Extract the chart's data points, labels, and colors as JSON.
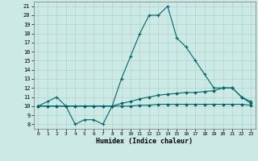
{
  "title": "",
  "xlabel": "Humidex (Indice chaleur)",
  "xlim": [
    -0.5,
    23.5
  ],
  "ylim": [
    7.5,
    21.5
  ],
  "xticks": [
    0,
    1,
    2,
    3,
    4,
    5,
    6,
    7,
    8,
    9,
    10,
    11,
    12,
    13,
    14,
    15,
    16,
    17,
    18,
    19,
    20,
    21,
    22,
    23
  ],
  "yticks": [
    8,
    9,
    10,
    11,
    12,
    13,
    14,
    15,
    16,
    17,
    18,
    19,
    20,
    21
  ],
  "background_color": "#cce9e5",
  "grid_color": "#aed4cf",
  "line_color": "#006666",
  "line1_x": [
    0,
    1,
    2,
    3,
    4,
    5,
    6,
    7,
    8,
    9,
    10,
    11,
    12,
    13,
    14,
    15,
    16,
    17,
    18,
    19,
    20,
    21,
    22,
    23
  ],
  "line1_y": [
    10,
    10.5,
    11,
    10,
    8,
    8.5,
    8.5,
    8,
    10,
    13,
    15.5,
    18,
    20,
    20,
    21,
    17.5,
    16.5,
    15,
    13.5,
    12,
    12,
    12,
    11,
    10.5
  ],
  "line2_x": [
    0,
    1,
    2,
    3,
    4,
    5,
    6,
    7,
    8,
    9,
    10,
    11,
    12,
    13,
    14,
    15,
    16,
    17,
    18,
    19,
    20,
    21,
    22,
    23
  ],
  "line2_y": [
    10,
    10,
    10,
    10,
    10,
    10,
    10,
    10,
    10,
    10.3,
    10.5,
    10.8,
    11,
    11.2,
    11.3,
    11.4,
    11.5,
    11.5,
    11.6,
    11.7,
    12,
    12,
    11,
    10.3
  ],
  "line3_x": [
    0,
    1,
    2,
    3,
    4,
    5,
    6,
    7,
    8,
    9,
    10,
    11,
    12,
    13,
    14,
    15,
    16,
    17,
    18,
    19,
    20,
    21,
    22,
    23
  ],
  "line3_y": [
    10,
    10,
    10,
    10,
    10,
    10,
    10,
    10,
    10,
    10,
    10,
    10.1,
    10.1,
    10.2,
    10.2,
    10.2,
    10.2,
    10.2,
    10.2,
    10.2,
    10.2,
    10.2,
    10.2,
    10.1
  ]
}
